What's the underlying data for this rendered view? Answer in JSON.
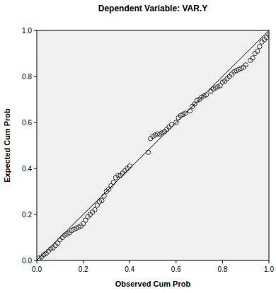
{
  "chart_data": {
    "type": "scatter",
    "title": "Dependent Variable: VAR.Y",
    "x_label": "Observed Cum Prob",
    "y_label": "Expected Cum Prob",
    "marker": "circle",
    "x": [
      0.01,
      0.02,
      0.03,
      0.04,
      0.05,
      0.06,
      0.07,
      0.08,
      0.09,
      0.1,
      0.11,
      0.12,
      0.13,
      0.14,
      0.15,
      0.16,
      0.17,
      0.18,
      0.19,
      0.2,
      0.21,
      0.22,
      0.23,
      0.24,
      0.25,
      0.26,
      0.27,
      0.28,
      0.29,
      0.3,
      0.31,
      0.32,
      0.33,
      0.34,
      0.35,
      0.36,
      0.37,
      0.38,
      0.39,
      0.4,
      0.48,
      0.49,
      0.5,
      0.51,
      0.52,
      0.53,
      0.54,
      0.55,
      0.56,
      0.57,
      0.58,
      0.6,
      0.61,
      0.62,
      0.63,
      0.64,
      0.66,
      0.67,
      0.68,
      0.69,
      0.7,
      0.71,
      0.72,
      0.73,
      0.75,
      0.76,
      0.77,
      0.78,
      0.79,
      0.8,
      0.81,
      0.82,
      0.83,
      0.84,
      0.85,
      0.86,
      0.87,
      0.88,
      0.89,
      0.9,
      0.92,
      0.93,
      0.94,
      0.95,
      0.96,
      0.97,
      0.98,
      0.99,
      1.0
    ],
    "values": [
      0.01,
      0.015,
      0.025,
      0.03,
      0.04,
      0.05,
      0.055,
      0.065,
      0.075,
      0.09,
      0.1,
      0.11,
      0.115,
      0.12,
      0.13,
      0.135,
      0.14,
      0.145,
      0.15,
      0.16,
      0.175,
      0.19,
      0.2,
      0.21,
      0.22,
      0.24,
      0.255,
      0.26,
      0.28,
      0.3,
      0.31,
      0.325,
      0.34,
      0.36,
      0.37,
      0.37,
      0.38,
      0.39,
      0.4,
      0.41,
      0.47,
      0.53,
      0.54,
      0.545,
      0.55,
      0.55,
      0.555,
      0.56,
      0.57,
      0.58,
      0.59,
      0.6,
      0.62,
      0.63,
      0.635,
      0.64,
      0.65,
      0.67,
      0.68,
      0.695,
      0.7,
      0.71,
      0.715,
      0.72,
      0.735,
      0.745,
      0.75,
      0.755,
      0.76,
      0.775,
      0.78,
      0.79,
      0.8,
      0.81,
      0.82,
      0.825,
      0.83,
      0.835,
      0.84,
      0.85,
      0.87,
      0.88,
      0.9,
      0.91,
      0.93,
      0.95,
      0.96,
      0.97,
      0.98
    ],
    "color": "#333333",
    "xlim": [
      0,
      1
    ],
    "ylim": [
      0,
      1
    ],
    "xticks": [
      {
        "value": 0,
        "label": "0.0"
      },
      {
        "value": 0.2,
        "label": "0.2"
      },
      {
        "value": 0.4,
        "label": "0.4"
      },
      {
        "value": 0.6,
        "label": "0.6"
      },
      {
        "value": 0.8,
        "label": "0.8"
      },
      {
        "value": 1,
        "label": "1.0"
      }
    ],
    "yticks": [
      {
        "value": 0,
        "label": "0.0"
      },
      {
        "value": 0.2,
        "label": "0.2"
      },
      {
        "value": 0.4,
        "label": "0.4"
      },
      {
        "value": 0.6,
        "label": "0.6"
      },
      {
        "value": 0.8,
        "label": "0.8"
      },
      {
        "value": 1,
        "label": "1.0"
      }
    ],
    "grid": false
  }
}
